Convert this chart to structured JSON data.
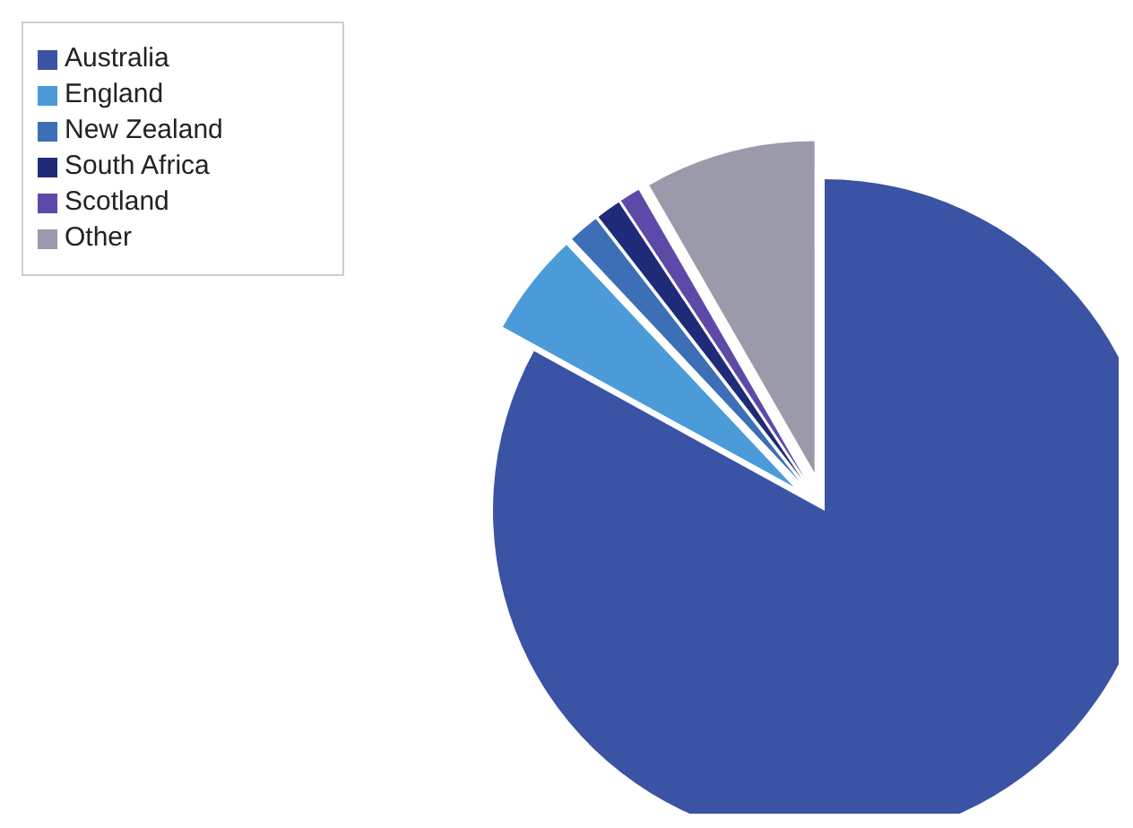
{
  "chart_data": {
    "type": "pie",
    "categories": [
      "Australia",
      "England",
      "New Zealand",
      "South Africa",
      "Scotland",
      "Other"
    ],
    "values": [
      83,
      5,
      1.5,
      1.2,
      1,
      8.3
    ],
    "colors": [
      "#3a53a4",
      "#4a9bd8",
      "#3c6fb6",
      "#1f2a78",
      "#5d4aa8",
      "#9a9aab"
    ],
    "legend": "top left"
  }
}
